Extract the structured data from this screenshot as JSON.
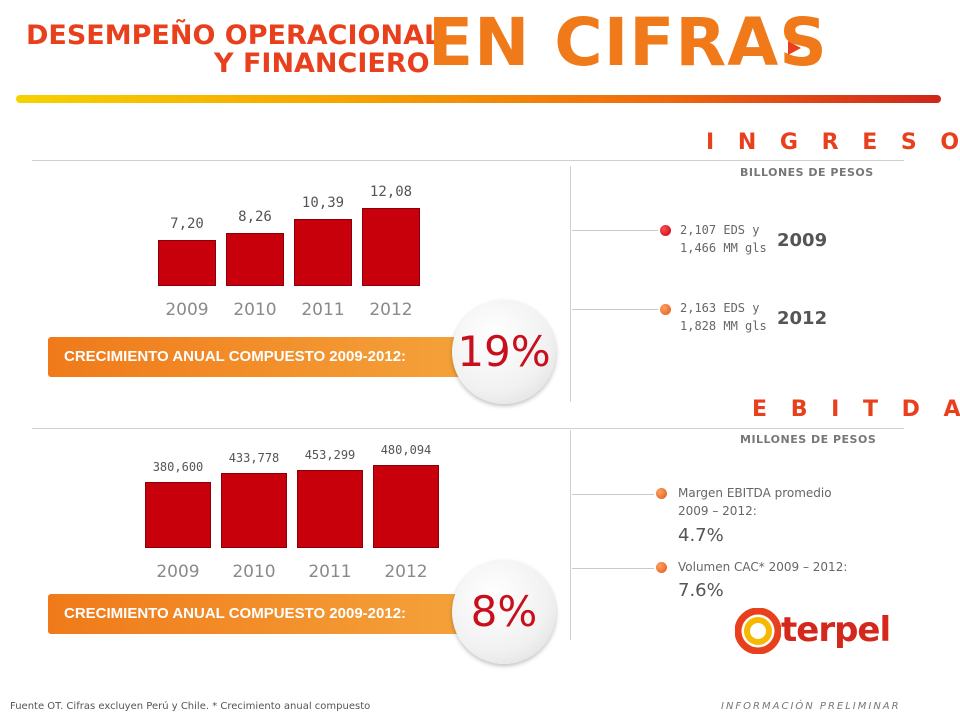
{
  "header": {
    "subtitle_line1": "DESEMPEÑO OPERACIONAL",
    "subtitle_line2": "Y FINANCIERO",
    "title": "EN CIFRAS"
  },
  "colors": {
    "accent": "#f07a1a",
    "title_red": "#e8401c",
    "bar": "#c8000c",
    "cagr_text": "#c8101c"
  },
  "ingresos": {
    "title": "I N G R E S O S",
    "unit": "BILLONES DE PESOS",
    "cagr_label": "CRECIMIENTO ANUAL COMPUESTO 2009-2012:",
    "cagr_value": "19%",
    "notes": [
      {
        "line1": "2,107 EDS y",
        "line2": "1,466 MM gls",
        "year": "2009"
      },
      {
        "line1": "2,163 EDS y",
        "line2": "1,828 MM gls",
        "year": "2012"
      }
    ]
  },
  "ebitda": {
    "title": "E B I T D A",
    "unit": "MILLONES DE PESOS",
    "cagr_label": "CRECIMIENTO ANUAL COMPUESTO 2009-2012:",
    "cagr_value": "8%",
    "metrics": [
      {
        "label_line1": "Margen EBITDA promedio",
        "label_line2": "2009 – 2012:",
        "value": "4.7%"
      },
      {
        "label_line1": "Volumen CAC* 2009 – 2012:",
        "label_line2": "",
        "value": "7.6%"
      }
    ]
  },
  "chart_data": [
    {
      "type": "bar",
      "categories": [
        "2009",
        "2010",
        "2011",
        "2012"
      ],
      "values": [
        7.2,
        8.26,
        10.39,
        12.08
      ],
      "value_labels": [
        "7,20",
        "8,26",
        "10,39",
        "12,08"
      ],
      "ylim": [
        0,
        12.08
      ]
    },
    {
      "type": "bar",
      "categories": [
        "2009",
        "2010",
        "2011",
        "2012"
      ],
      "values": [
        380600,
        433778,
        453299,
        480094
      ],
      "value_labels": [
        "380,600",
        "433,778",
        "453,299",
        "480,094"
      ],
      "ylim": [
        0,
        480094
      ]
    }
  ],
  "logo": {
    "text": "terpel"
  },
  "footer": {
    "source": "Fuente OT. Cifras excluyen Perú y Chile. * Crecimiento anual compuesto",
    "tag": "INFORMACIÓN PRELIMINAR"
  }
}
